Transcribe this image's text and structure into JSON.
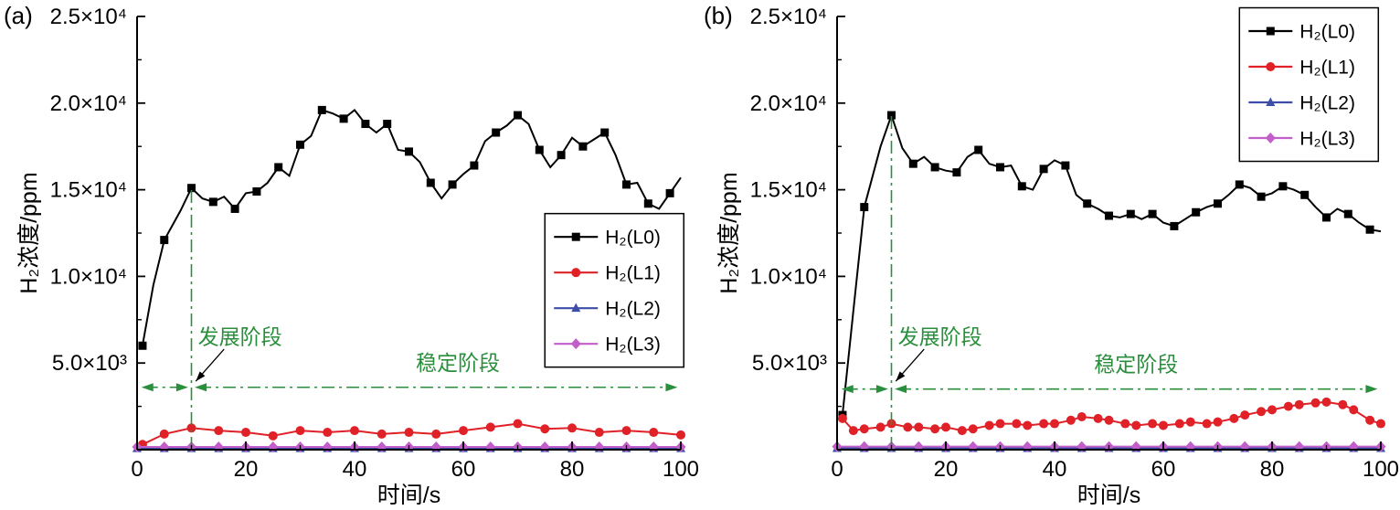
{
  "chart_data": [
    {
      "type": "line",
      "panel_label": "(a)",
      "xlabel": "时间/s",
      "ylabel": "H₂浓度/ppm",
      "xlim": [
        0,
        100
      ],
      "ylim": [
        0,
        25000
      ],
      "xticks": [
        {
          "v": 0,
          "label": "0"
        },
        {
          "v": 20,
          "label": "20"
        },
        {
          "v": 40,
          "label": "40"
        },
        {
          "v": 60,
          "label": "60"
        },
        {
          "v": 80,
          "label": "80"
        },
        {
          "v": 100,
          "label": "100"
        }
      ],
      "xminor": [
        10,
        30,
        50,
        70,
        90
      ],
      "yticks": [
        {
          "v": 5000,
          "label": "5.0×10³"
        },
        {
          "v": 10000,
          "label": "1.0×10⁴"
        },
        {
          "v": 15000,
          "label": "1.5×10⁴"
        },
        {
          "v": 20000,
          "label": "2.0×10⁴"
        },
        {
          "v": 25000,
          "label": "2.5×10⁴"
        }
      ],
      "yminor": [
        2500,
        7500,
        12500,
        17500,
        22500
      ],
      "legend": {
        "fx": 0.75,
        "fy": 0.455
      },
      "annotations": {
        "color": "#2a8f3c",
        "vline_x": 10,
        "vline_top": 15100,
        "arrow_y": 3600,
        "dev_label": "发展阶段",
        "dev_x": 11.2,
        "dev_y": 6100,
        "stable_label": "稳定阶段",
        "stable_x": 59,
        "stable_y": 4600,
        "pointer_from": [
          16,
          5800
        ],
        "pointer_to": [
          10.8,
          3950
        ]
      },
      "series": [
        {
          "name": "H₂(L0)",
          "color": "#000000",
          "marker": "square",
          "marker_every": 2,
          "x": [
            1,
            3,
            5,
            8,
            10,
            12,
            14,
            16,
            18,
            20,
            22,
            24,
            26,
            28,
            30,
            32,
            34,
            36,
            38,
            40,
            42,
            44,
            46,
            48,
            50,
            52,
            54,
            56,
            58,
            60,
            62,
            64,
            66,
            68,
            70,
            72,
            74,
            76,
            78,
            80,
            82,
            84,
            86,
            88,
            90,
            92,
            94,
            96,
            98,
            100
          ],
          "y": [
            6000,
            9500,
            12100,
            13800,
            15100,
            14500,
            14300,
            14600,
            13900,
            14800,
            14900,
            15400,
            16300,
            15800,
            17600,
            18100,
            19600,
            19400,
            19100,
            19600,
            18800,
            18300,
            18800,
            17300,
            17200,
            16600,
            15400,
            14500,
            15300,
            15900,
            16400,
            17800,
            18300,
            18700,
            19300,
            18800,
            17300,
            16300,
            17000,
            18000,
            17500,
            17900,
            18300,
            17000,
            15300,
            15400,
            14200,
            13900,
            14800,
            15700
          ]
        },
        {
          "name": "H₂(L1)",
          "color": "#e02128",
          "marker": "circle",
          "marker_every": 1,
          "x": [
            1,
            5,
            10,
            15,
            20,
            25,
            30,
            35,
            40,
            45,
            50,
            55,
            60,
            65,
            70,
            75,
            80,
            85,
            90,
            95,
            100
          ],
          "y": [
            300,
            900,
            1250,
            1100,
            1000,
            800,
            1100,
            1000,
            1100,
            900,
            1000,
            900,
            1100,
            1300,
            1500,
            1200,
            1250,
            1000,
            1100,
            1000,
            850
          ]
        },
        {
          "name": "H₂(L2)",
          "color": "#3d4da8",
          "marker": "triangle",
          "marker_every": 1,
          "x": [
            0,
            5,
            10,
            15,
            20,
            25,
            30,
            35,
            40,
            45,
            50,
            55,
            60,
            65,
            70,
            75,
            80,
            85,
            90,
            95,
            100
          ],
          "y": [
            70,
            70,
            70,
            70,
            70,
            70,
            70,
            70,
            70,
            70,
            70,
            70,
            70,
            70,
            70,
            70,
            70,
            70,
            70,
            70,
            70
          ]
        },
        {
          "name": "H₂(L3)",
          "color": "#c25ec9",
          "marker": "diamond",
          "marker_every": 1,
          "x": [
            0,
            5,
            10,
            15,
            20,
            25,
            30,
            35,
            40,
            45,
            50,
            55,
            60,
            65,
            70,
            75,
            80,
            85,
            90,
            95,
            100
          ],
          "y": [
            160,
            160,
            160,
            160,
            160,
            160,
            160,
            160,
            160,
            160,
            160,
            160,
            160,
            160,
            160,
            160,
            160,
            160,
            160,
            160,
            160
          ]
        }
      ]
    },
    {
      "type": "line",
      "panel_label": "(b)",
      "xlabel": "时间/s",
      "ylabel": "H₂浓度/ppm",
      "xlim": [
        0,
        100
      ],
      "ylim": [
        0,
        25000
      ],
      "xticks": [
        {
          "v": 0,
          "label": "0"
        },
        {
          "v": 20,
          "label": "20"
        },
        {
          "v": 40,
          "label": "40"
        },
        {
          "v": 60,
          "label": "60"
        },
        {
          "v": 80,
          "label": "80"
        },
        {
          "v": 100,
          "label": "100"
        }
      ],
      "xminor": [
        10,
        30,
        50,
        70,
        90
      ],
      "yticks": [
        {
          "v": 5000,
          "label": "5.0×10³"
        },
        {
          "v": 10000,
          "label": "1.0×10⁴"
        },
        {
          "v": 15000,
          "label": "1.5×10⁴"
        },
        {
          "v": 20000,
          "label": "2.0×10⁴"
        },
        {
          "v": 25000,
          "label": "2.5×10⁴"
        }
      ],
      "yminor": [
        2500,
        7500,
        12500,
        17500,
        22500
      ],
      "legend": {
        "fx": 0.74,
        "fy": -0.02
      },
      "annotations": {
        "color": "#2a8f3c",
        "vline_x": 10,
        "vline_top": 19300,
        "arrow_y": 3500,
        "dev_label": "发展阶段",
        "dev_x": 11.2,
        "dev_y": 6100,
        "stable_label": "稳定阶段",
        "stable_x": 55,
        "stable_y": 4500,
        "pointer_from": [
          16,
          5800
        ],
        "pointer_to": [
          10.8,
          3950
        ]
      },
      "series": [
        {
          "name": "H₂(L0)",
          "color": "#000000",
          "marker": "square",
          "marker_every": 2,
          "x": [
            1,
            3,
            5,
            8,
            10,
            12,
            14,
            16,
            18,
            20,
            22,
            24,
            26,
            28,
            30,
            32,
            34,
            36,
            38,
            40,
            42,
            44,
            46,
            48,
            50,
            52,
            54,
            56,
            58,
            60,
            62,
            64,
            66,
            68,
            70,
            72,
            74,
            76,
            78,
            80,
            82,
            84,
            86,
            88,
            90,
            92,
            94,
            96,
            98,
            100
          ],
          "y": [
            2000,
            8000,
            14000,
            17500,
            19300,
            17400,
            16500,
            16900,
            16300,
            16100,
            16000,
            16900,
            17300,
            16500,
            16300,
            16400,
            15200,
            15000,
            16200,
            16700,
            16400,
            14700,
            14200,
            13900,
            13500,
            13400,
            13600,
            13300,
            13600,
            13100,
            12900,
            13300,
            13700,
            14000,
            14200,
            14700,
            15300,
            15100,
            14600,
            14800,
            15200,
            15000,
            14700,
            14000,
            13400,
            13900,
            13600,
            13100,
            12700,
            12600
          ]
        },
        {
          "name": "H₂(L1)",
          "color": "#e02128",
          "marker": "circle",
          "marker_every": 1,
          "x": [
            1,
            3,
            5,
            8,
            10,
            13,
            15,
            18,
            20,
            23,
            25,
            28,
            30,
            33,
            35,
            38,
            40,
            43,
            45,
            48,
            50,
            53,
            55,
            58,
            60,
            63,
            65,
            68,
            70,
            73,
            75,
            78,
            80,
            83,
            85,
            88,
            90,
            93,
            95,
            98,
            100
          ],
          "y": [
            1800,
            1100,
            1200,
            1300,
            1500,
            1300,
            1300,
            1200,
            1300,
            1100,
            1200,
            1400,
            1500,
            1500,
            1400,
            1500,
            1500,
            1700,
            1900,
            1800,
            1700,
            1500,
            1400,
            1500,
            1400,
            1500,
            1600,
            1500,
            1600,
            1800,
            2000,
            2200,
            2300,
            2500,
            2600,
            2700,
            2750,
            2600,
            2300,
            1700,
            1500
          ]
        },
        {
          "name": "H₂(L2)",
          "color": "#3d4da8",
          "marker": "triangle",
          "marker_every": 1,
          "x": [
            0,
            5,
            10,
            15,
            20,
            25,
            30,
            35,
            40,
            45,
            50,
            55,
            60,
            65,
            70,
            75,
            80,
            85,
            90,
            95,
            100
          ],
          "y": [
            80,
            80,
            80,
            80,
            80,
            80,
            80,
            80,
            80,
            80,
            80,
            80,
            80,
            80,
            80,
            80,
            80,
            80,
            80,
            80,
            80
          ]
        },
        {
          "name": "H₂(L3)",
          "color": "#c25ec9",
          "marker": "diamond",
          "marker_every": 1,
          "x": [
            0,
            5,
            10,
            15,
            20,
            25,
            30,
            35,
            40,
            45,
            50,
            55,
            60,
            65,
            70,
            75,
            80,
            85,
            90,
            95,
            100
          ],
          "y": [
            180,
            180,
            180,
            180,
            180,
            180,
            180,
            180,
            180,
            180,
            180,
            180,
            180,
            180,
            180,
            180,
            180,
            180,
            180,
            180,
            180
          ]
        }
      ]
    }
  ]
}
